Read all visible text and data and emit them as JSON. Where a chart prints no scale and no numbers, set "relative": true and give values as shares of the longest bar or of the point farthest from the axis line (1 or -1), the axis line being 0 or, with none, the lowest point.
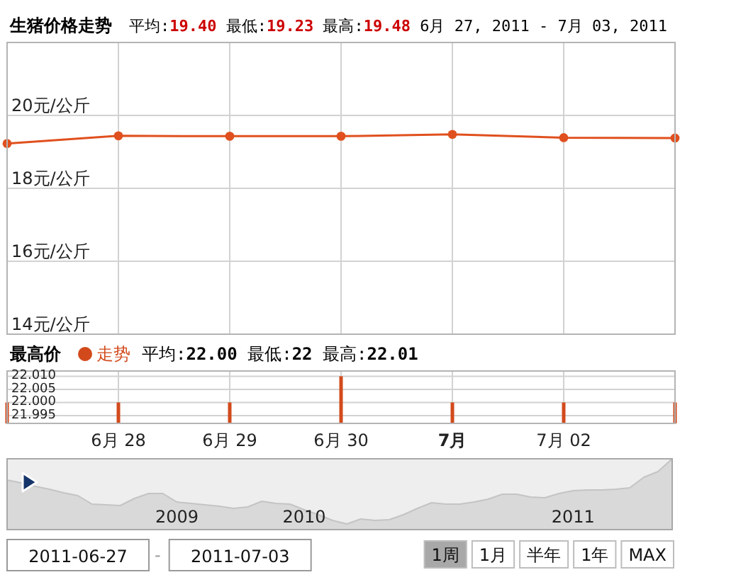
{
  "chart_data": [
    {
      "type": "line",
      "title": "生猪价格走势",
      "subtitle": "平均:19.40 最低:19.23 最高:19.48 6月 27, 2011 - 7月 03, 2011",
      "x": [
        "2011-06-27",
        "2011-06-28",
        "2011-06-29",
        "2011-06-30",
        "2011-07-01",
        "2011-07-02",
        "2011-07-03"
      ],
      "series": [
        {
          "color": "#e0501e",
          "values": [
            19.23,
            19.44,
            19.43,
            19.43,
            19.48,
            19.39,
            19.38
          ]
        }
      ],
      "xlim": [
        "2011-06-27",
        "2011-07-03"
      ],
      "xticks": [
        {
          "value": "2011-06-28",
          "label": null
        },
        {
          "value": "2011-06-29",
          "label": null
        },
        {
          "value": "2011-06-30",
          "label": null
        },
        {
          "value": "2011-07-01",
          "label": null
        },
        {
          "value": "2011-07-02",
          "label": null
        }
      ],
      "ylim": [
        14,
        22
      ],
      "yticks": [
        {
          "value": 14,
          "label": "14元/公斤"
        },
        {
          "value": 16,
          "label": "16元/公斤"
        },
        {
          "value": 18,
          "label": "18元/公斤"
        },
        {
          "value": 20,
          "label": "20元/公斤"
        }
      ],
      "tick_labels": "y",
      "grid": true,
      "marker": "circle",
      "line_style": "solid"
    },
    {
      "type": "bar",
      "title": "最高价",
      "subtitle": "平均:22.00 最低:22 最高:22.01",
      "x": [
        "2011-06-27",
        "2011-06-28",
        "2011-06-29",
        "2011-06-30",
        "2011-07-01",
        "2011-07-02",
        "2011-07-03"
      ],
      "series": [
        {
          "name": "走势",
          "color": "#d24a1c",
          "values": [
            22,
            22,
            22,
            22.01,
            22,
            22,
            22
          ]
        }
      ],
      "xlim": [
        "2011-06-27",
        "2011-07-03"
      ],
      "xticks": [
        {
          "value": "2011-06-28",
          "label": "6月 28"
        },
        {
          "value": "2011-06-29",
          "label": "6月 29"
        },
        {
          "value": "2011-06-30",
          "label": "6月 30"
        },
        {
          "value": "2011-07-01",
          "label": "7月"
        },
        {
          "value": "2011-07-02",
          "label": "7月 02"
        }
      ],
      "ylim": [
        21.992,
        22.012
      ],
      "yticks": [
        21.995,
        {
          "value": 22,
          "label": "22.000"
        },
        22.005,
        {
          "value": 22.01,
          "label": "22.010"
        }
      ],
      "grid": true,
      "legend": "top left"
    },
    {
      "type": "area",
      "relative": true,
      "categories": [
        null,
        null,
        null,
        null,
        null,
        null,
        null,
        null,
        null,
        null,
        null,
        null,
        "2009",
        null,
        null,
        null,
        null,
        null,
        null,
        null,
        null,
        "2010",
        null,
        null,
        null,
        null,
        null,
        null,
        null,
        null,
        null,
        null,
        null,
        null,
        null,
        null,
        null,
        null,
        null,
        null,
        "2011",
        null,
        null,
        null,
        null,
        null,
        null,
        null
      ],
      "series": [
        {
          "color": "#d9d9d9",
          "values": [
            0.7,
            0.66,
            0.61,
            0.57,
            0.52,
            0.48,
            0.36,
            0.35,
            0.34,
            0.44,
            0.51,
            0.51,
            0.39,
            0.37,
            0.35,
            0.33,
            0.3,
            0.32,
            0.4,
            0.37,
            0.36,
            0.28,
            0.21,
            0.13,
            0.08,
            0.15,
            0.13,
            0.14,
            0.21,
            0.3,
            0.38,
            0.36,
            0.36,
            0.39,
            0.43,
            0.5,
            0.5,
            0.46,
            0.45,
            0.51,
            0.55,
            0.56,
            0.56,
            0.57,
            0.59,
            0.74,
            0.82,
            1
          ]
        }
      ]
    },
    {
      "type": "other",
      "annotations": [
        "2011-06-27",
        "-",
        "2011-07-03",
        "1周",
        "1月",
        "半年",
        "1年",
        "MAX"
      ]
    }
  ]
}
